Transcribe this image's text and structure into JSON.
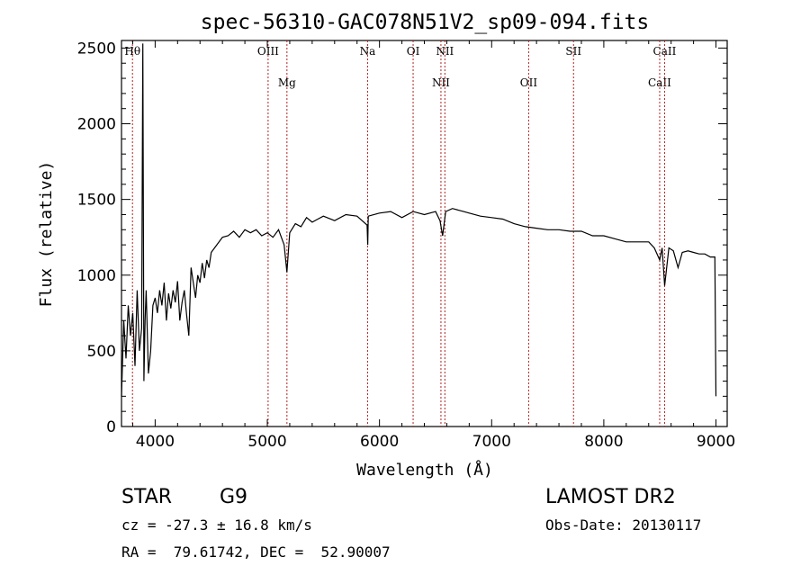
{
  "chart_data": {
    "type": "line",
    "title": "spec-56310-GAC078N51V2_sp09-094.fits",
    "xlabel": "Wavelength (Å)",
    "ylabel": "Flux (relative)",
    "xlim": [
      3700,
      9100
    ],
    "ylim": [
      0,
      2550
    ],
    "xticks": [
      4000,
      5000,
      6000,
      7000,
      8000,
      9000
    ],
    "yticks": [
      0,
      500,
      1000,
      1500,
      2000,
      2500
    ],
    "grid": false,
    "line_color": "#000000",
    "marker_color": "#b22222",
    "spectral_lines": [
      {
        "label": "Hθ",
        "wavelength": 3798,
        "row": "upper"
      },
      {
        "label": "OIII",
        "wavelength": 5007,
        "row": "upper"
      },
      {
        "label": "Mg",
        "wavelength": 5175,
        "row": "lower"
      },
      {
        "label": "Na",
        "wavelength": 5894,
        "row": "upper"
      },
      {
        "label": "OI",
        "wavelength": 6300,
        "row": "upper"
      },
      {
        "label": "NII",
        "wavelength": 6548,
        "row": "lower"
      },
      {
        "label": "NII",
        "wavelength": 6583,
        "row": "upper"
      },
      {
        "label": "OII",
        "wavelength": 7330,
        "row": "lower"
      },
      {
        "label": "SII",
        "wavelength": 7730,
        "row": "upper"
      },
      {
        "label": "CaII",
        "wavelength": 8498,
        "row": "lower"
      },
      {
        "label": "CaII",
        "wavelength": 8542,
        "row": "upper"
      }
    ],
    "series": [
      {
        "x": [
          3700,
          3720,
          3740,
          3760,
          3780,
          3800,
          3820,
          3840,
          3860,
          3880,
          3890,
          3900,
          3910,
          3920,
          3940,
          3960,
          3980,
          4000,
          4020,
          4040,
          4060,
          4080,
          4100,
          4120,
          4140,
          4160,
          4180,
          4200,
          4220,
          4240,
          4260,
          4280,
          4300,
          4320,
          4340,
          4360,
          4380,
          4400,
          4420,
          4440,
          4460,
          4480,
          4500,
          4550,
          4600,
          4650,
          4700,
          4750,
          4800,
          4850,
          4900,
          4950,
          5000,
          5050,
          5100,
          5150,
          5175,
          5200,
          5250,
          5300,
          5350,
          5400,
          5450,
          5500,
          5600,
          5700,
          5800,
          5890,
          5895,
          5900,
          6000,
          6100,
          6200,
          6300,
          6400,
          6500,
          6540,
          6563,
          6590,
          6650,
          6700,
          6750,
          6800,
          6900,
          7000,
          7100,
          7200,
          7300,
          7400,
          7500,
          7600,
          7700,
          7800,
          7900,
          8000,
          8100,
          8200,
          8300,
          8400,
          8450,
          8498,
          8520,
          8542,
          8580,
          8620,
          8662,
          8700,
          8750,
          8800,
          8850,
          8900,
          8950,
          8990,
          9000
        ],
        "y": [
          200,
          700,
          450,
          800,
          600,
          750,
          400,
          900,
          500,
          650,
          2530,
          300,
          700,
          900,
          350,
          500,
          800,
          850,
          750,
          900,
          800,
          950,
          700,
          880,
          780,
          900,
          820,
          960,
          700,
          820,
          900,
          740,
          600,
          1050,
          950,
          850,
          1000,
          950,
          1080,
          980,
          1100,
          1050,
          1150,
          1200,
          1250,
          1260,
          1290,
          1250,
          1300,
          1280,
          1300,
          1260,
          1280,
          1250,
          1300,
          1200,
          1020,
          1280,
          1340,
          1320,
          1380,
          1350,
          1370,
          1390,
          1360,
          1400,
          1390,
          1330,
          1200,
          1390,
          1410,
          1420,
          1380,
          1420,
          1400,
          1420,
          1360,
          1260,
          1420,
          1440,
          1430,
          1420,
          1410,
          1390,
          1380,
          1370,
          1340,
          1320,
          1310,
          1300,
          1300,
          1290,
          1290,
          1260,
          1260,
          1240,
          1220,
          1220,
          1220,
          1180,
          1100,
          1180,
          930,
          1180,
          1160,
          1050,
          1150,
          1160,
          1150,
          1140,
          1140,
          1120,
          1120,
          200
        ]
      }
    ]
  },
  "info": {
    "object_class": "STAR",
    "subclass": "G9",
    "survey": "LAMOST DR2",
    "redshift": "cz = -27.3 ± 16.8 km/s",
    "obs_date": "Obs-Date: 20130117",
    "coords": "RA =  79.61742, DEC =  52.90007"
  }
}
